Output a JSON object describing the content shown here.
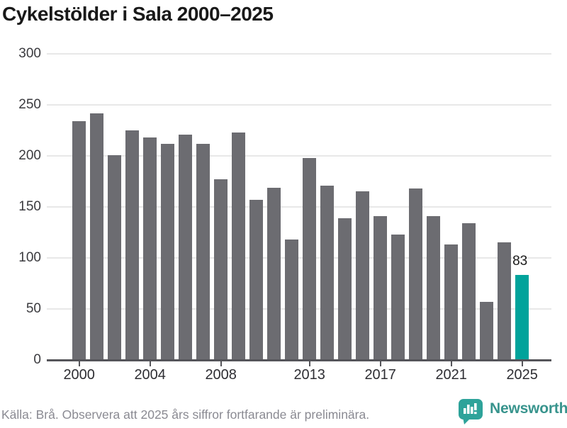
{
  "header": {
    "title": "Cykelstölder i Sala 2000–2025"
  },
  "chart_data": {
    "type": "bar",
    "title": "Cykelstölder i Sala 2000–2025",
    "x": [
      2000,
      2001,
      2002,
      2003,
      2004,
      2005,
      2006,
      2007,
      2008,
      2009,
      2010,
      2011,
      2012,
      2013,
      2014,
      2015,
      2016,
      2017,
      2018,
      2019,
      2020,
      2021,
      2022,
      2023,
      2024,
      2025
    ],
    "values": [
      234,
      242,
      201,
      225,
      218,
      212,
      221,
      212,
      177,
      223,
      157,
      169,
      118,
      198,
      171,
      139,
      165,
      141,
      123,
      168,
      141,
      113,
      134,
      57,
      115,
      83
    ],
    "xlabel": "",
    "ylabel": "",
    "ylim": [
      0,
      300
    ],
    "y_ticks": [
      0,
      50,
      100,
      150,
      200,
      250,
      300
    ],
    "x_ticks": [
      "2000",
      "2004",
      "2008",
      "2013",
      "2017",
      "2021",
      "2025"
    ],
    "grid": true,
    "legend_position": "none",
    "bar_color": "#6c6c71",
    "highlight_year": 2025,
    "highlight_color": "#00a39b",
    "highlight_value_label": "83",
    "gridline_color": "#e8e8e8",
    "axis_color": "#55555a"
  },
  "footer": {
    "source": "Källa: Brå. Observera att 2025 års siffror fortfarande är preliminära."
  },
  "branding": {
    "name": "Newsworthy",
    "logo_icon": "bar-chart-speech-bubble-icon",
    "icon_color": "#2ea39a",
    "text_color": "#38948d"
  }
}
